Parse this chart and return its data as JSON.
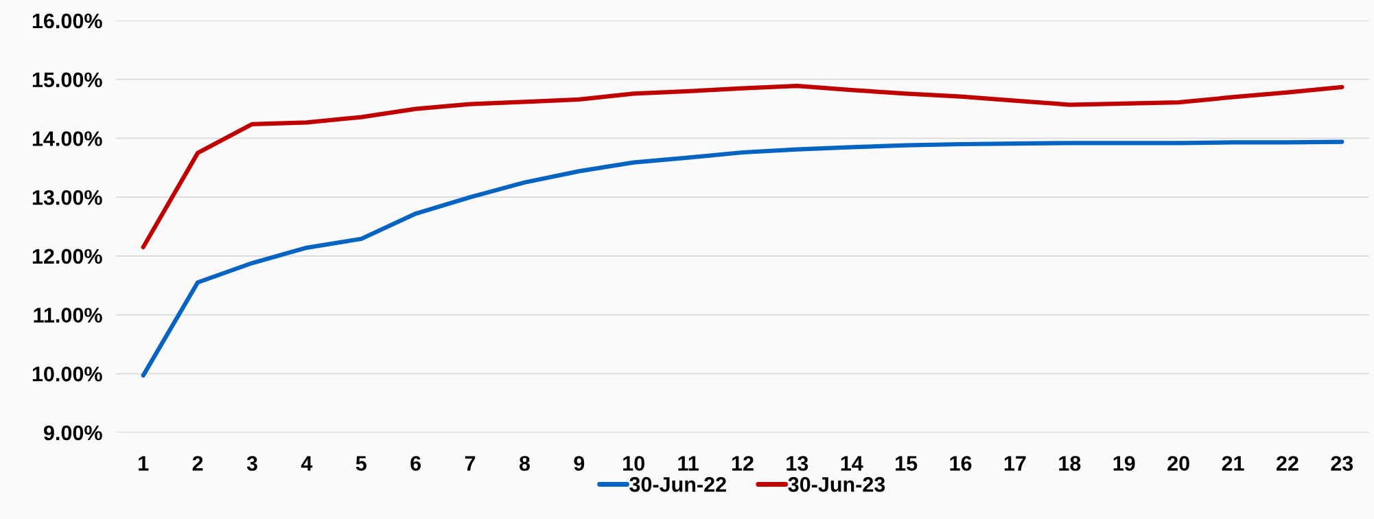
{
  "chart_data": {
    "type": "line",
    "categories": [
      "1",
      "2",
      "3",
      "4",
      "5",
      "6",
      "7",
      "8",
      "9",
      "10",
      "11",
      "12",
      "13",
      "14",
      "15",
      "16",
      "17",
      "18",
      "19",
      "20",
      "21",
      "22",
      "23"
    ],
    "series": [
      {
        "name": "30-Jun-22",
        "color": "#0563c1",
        "values": [
          9.97,
          11.55,
          11.88,
          12.14,
          12.29,
          12.72,
          13.0,
          13.25,
          13.44,
          13.59,
          13.67,
          13.76,
          13.81,
          13.85,
          13.88,
          13.9,
          13.91,
          13.92,
          13.92,
          13.92,
          13.93,
          13.93,
          13.94
        ]
      },
      {
        "name": "30-Jun-23",
        "color": "#c00000",
        "values": [
          12.15,
          13.75,
          14.24,
          14.27,
          14.36,
          14.5,
          14.58,
          14.62,
          14.66,
          14.76,
          14.8,
          14.85,
          14.89,
          14.82,
          14.76,
          14.71,
          14.64,
          14.57,
          14.59,
          14.61,
          14.7,
          14.78,
          14.87
        ]
      }
    ],
    "ylim": [
      9,
      16
    ],
    "yticks": [
      {
        "value": 9,
        "label": "9.00%"
      },
      {
        "value": 10,
        "label": "10.00%"
      },
      {
        "value": 11,
        "label": "11.00%"
      },
      {
        "value": 12,
        "label": "12.00%"
      },
      {
        "value": 13,
        "label": "13.00%"
      },
      {
        "value": 14,
        "label": "14.00%"
      },
      {
        "value": 15,
        "label": "15.00%"
      },
      {
        "value": 16,
        "label": "16.00%"
      }
    ],
    "grid": "y",
    "legend": "bottom",
    "marker": "none",
    "line_style": "solid"
  }
}
